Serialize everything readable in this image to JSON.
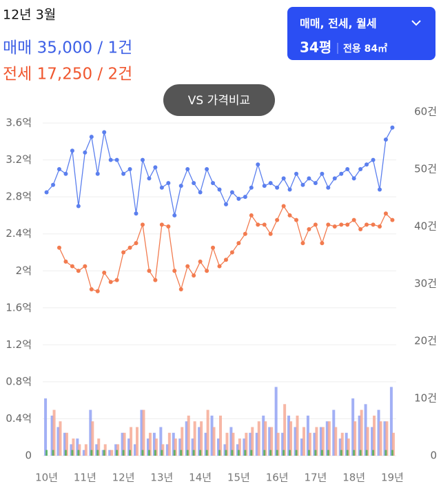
{
  "header": {
    "date": "12년 3월",
    "sale": "매매 35,000 / 1건",
    "jeonse": "전세 17,250 / 2건"
  },
  "filter": {
    "types": "매매, 전세, 월세",
    "size": "34평",
    "area": "전용 84㎡"
  },
  "compare_button": "VS 가격비교",
  "chart_data": {
    "type": "line",
    "x": [
      10,
      10.17,
      10.33,
      10.5,
      10.67,
      10.83,
      11,
      11.17,
      11.33,
      11.5,
      11.67,
      11.83,
      12,
      12.17,
      12.33,
      12.5,
      12.67,
      12.83,
      13,
      13.17,
      13.33,
      13.5,
      13.67,
      13.83,
      14,
      14.17,
      14.33,
      14.5,
      14.67,
      14.83,
      15,
      15.17,
      15.33,
      15.5,
      15.67,
      15.83,
      16,
      16.17,
      16.33,
      16.5,
      16.67,
      16.83,
      17,
      17.17,
      17.33,
      17.5,
      17.67,
      17.83,
      18,
      18.17,
      18.33,
      18.5,
      18.67,
      18.83,
      19
    ],
    "xlim": [
      9.9,
      19.1
    ],
    "xticks": [
      {
        "value": 10,
        "label": "10년"
      },
      {
        "value": 11,
        "label": "11년"
      },
      {
        "value": 12,
        "label": "12년"
      },
      {
        "value": 13,
        "label": "13년"
      },
      {
        "value": 14,
        "label": "14년"
      },
      {
        "value": 15,
        "label": "15년"
      },
      {
        "value": 16,
        "label": "16년"
      },
      {
        "value": 17,
        "label": "17년"
      },
      {
        "value": 18,
        "label": "18년"
      },
      {
        "value": 19,
        "label": "19년"
      }
    ],
    "ylim": [
      0,
      3.72
    ],
    "yticks": [
      0,
      {
        "value": 0.4,
        "label": "0.4억"
      },
      {
        "value": 0.8,
        "label": "0.8억"
      },
      {
        "value": 1.2,
        "label": "1.2억"
      },
      {
        "value": 1.6,
        "label": "1.6억"
      },
      {
        "value": 2,
        "label": "2억"
      },
      {
        "value": 2.4,
        "label": "2.4억"
      },
      {
        "value": 2.8,
        "label": "2.8억"
      },
      {
        "value": 3.2,
        "label": "3.2억"
      },
      {
        "value": 3.6,
        "label": "3.6억"
      }
    ],
    "y2lim": [
      0,
      60
    ],
    "y2ticks": [
      0,
      {
        "value": 10,
        "label": "10건"
      },
      {
        "value": 20,
        "label": "20건"
      },
      {
        "value": 30,
        "label": "30건"
      },
      {
        "value": 40,
        "label": "40건"
      },
      {
        "value": 50,
        "label": "50건"
      },
      {
        "value": 60,
        "label": "60건"
      }
    ],
    "grid": true,
    "series": [
      {
        "type": "bar",
        "axis": "y2",
        "color": "#8b9cf2",
        "values": [
          10,
          7,
          5,
          4,
          2,
          3,
          1,
          8,
          2,
          1,
          1,
          2,
          4,
          3,
          2,
          8,
          3,
          4,
          5,
          2,
          4,
          3,
          6,
          3,
          5,
          4,
          7,
          3,
          2,
          5,
          2,
          3,
          4,
          4,
          7,
          5,
          12,
          4,
          7,
          5,
          3,
          7,
          4,
          5,
          6,
          8,
          3,
          4,
          10,
          7,
          9,
          5,
          8,
          6,
          12
        ]
      },
      {
        "type": "bar",
        "axis": "y2",
        "color": "#f5a58f",
        "values": [
          0,
          8,
          6,
          4,
          3,
          2,
          2,
          6,
          3,
          2,
          1,
          2,
          4,
          5,
          5,
          8,
          4,
          3,
          2,
          4,
          3,
          5,
          7,
          6,
          6,
          8,
          5,
          7,
          4,
          4,
          3,
          4,
          5,
          6,
          6,
          5,
          4,
          9,
          6,
          7,
          5,
          4,
          5,
          5,
          6,
          5,
          4,
          3,
          6,
          8,
          5,
          7,
          6,
          6,
          4
        ]
      },
      {
        "type": "bar",
        "axis": "y2",
        "color": "#4caf50",
        "values": [
          1,
          1,
          0,
          1,
          1,
          1,
          0,
          1,
          1,
          1,
          0,
          1,
          1,
          1,
          0,
          1,
          1,
          1,
          1,
          0,
          1,
          1,
          1,
          1,
          1,
          1,
          0,
          1,
          1,
          1,
          1,
          1,
          1,
          0,
          1,
          1,
          1,
          1,
          1,
          1,
          0,
          1,
          1,
          1,
          1,
          0,
          1,
          1,
          1,
          1,
          1,
          1,
          0,
          1,
          1
        ]
      },
      {
        "type": "line",
        "color": "#5b7fee",
        "values": [
          2.85,
          2.93,
          3.1,
          3.05,
          3.3,
          2.7,
          3.28,
          3.45,
          3.05,
          3.5,
          3.2,
          3.2,
          3.05,
          3.1,
          2.62,
          3.2,
          3.0,
          3.12,
          2.9,
          2.95,
          2.6,
          2.92,
          3.1,
          2.95,
          2.85,
          3.1,
          2.95,
          2.88,
          2.72,
          2.85,
          2.78,
          2.8,
          2.9,
          3.15,
          2.92,
          2.95,
          2.9,
          3.0,
          2.88,
          3.05,
          2.93,
          3.0,
          2.95,
          3.05,
          2.9,
          3.0,
          3.05,
          3.1,
          3.0,
          3.1,
          3.15,
          3.2,
          2.88,
          3.42,
          3.55
        ]
      },
      {
        "type": "line",
        "color": "#f27b4f",
        "values": [
          null,
          null,
          2.25,
          2.1,
          2.05,
          2.0,
          2.05,
          1.8,
          1.78,
          1.98,
          1.88,
          1.9,
          2.2,
          2.25,
          2.3,
          2.5,
          2.0,
          1.9,
          2.5,
          2.48,
          2.0,
          1.8,
          2.05,
          1.95,
          2.1,
          2.0,
          2.25,
          2.05,
          2.12,
          2.2,
          2.3,
          2.4,
          2.6,
          2.5,
          2.5,
          2.4,
          2.55,
          2.7,
          2.6,
          2.55,
          2.3,
          2.45,
          2.5,
          2.3,
          2.5,
          2.48,
          2.5,
          2.5,
          2.55,
          2.45,
          2.5,
          2.5,
          2.48,
          2.62,
          2.55
        ]
      }
    ]
  }
}
